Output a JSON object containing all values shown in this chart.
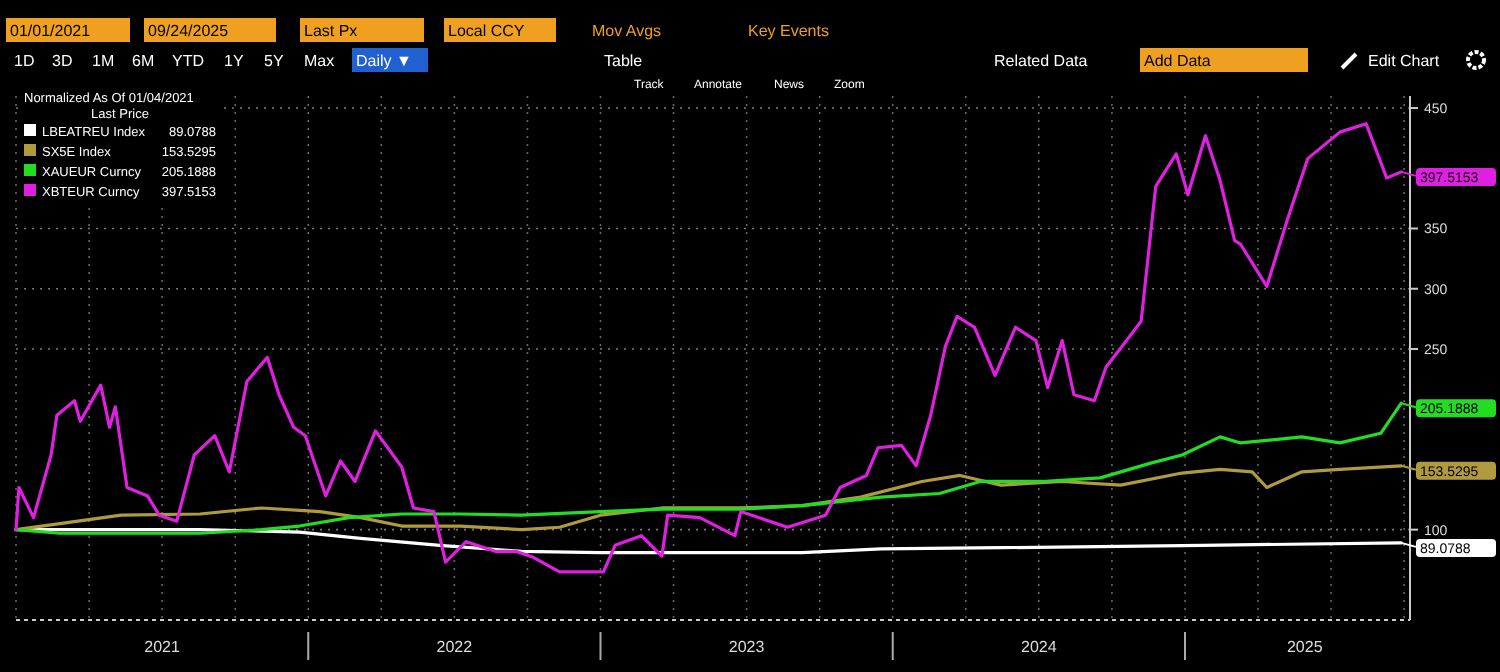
{
  "chart_data": {
    "type": "line",
    "legend_title": "Normalized As Of 01/04/2021",
    "legend": "top left",
    "grid": true,
    "line_style": "solid",
    "xlim": [
      2021,
      2025.77
    ],
    "ylim": [
      25,
      460
    ],
    "xticks": [
      {
        "value": 2021.5,
        "label": "2021"
      },
      {
        "value": 2022,
        "label": null
      },
      {
        "value": 2022.5,
        "label": "2022"
      },
      {
        "value": 2023,
        "label": null
      },
      {
        "value": 2023.5,
        "label": "2023"
      },
      {
        "value": 2024,
        "label": null
      },
      {
        "value": 2024.5,
        "label": "2024"
      },
      {
        "value": 2025,
        "label": null
      },
      {
        "value": 2025.41,
        "label": "2025"
      }
    ],
    "yticks": [
      100,
      250,
      300,
      350,
      450
    ],
    "series": [
      {
        "name": "LBEATREU Index",
        "color": "#ffffff",
        "x": [
          2021,
          2021.63,
          2021.97,
          2022.17,
          2022.45,
          2022.73,
          2023.0,
          2023.69,
          2023.96,
          2024.37,
          2025.06,
          2025.74
        ],
        "values": [
          100,
          100,
          98,
          93,
          87,
          82,
          81,
          81,
          84,
          85,
          87,
          89
        ]
      },
      {
        "name": "SX5E Index",
        "color": "#b09a40",
        "x": [
          2021,
          2021.15,
          2021.36,
          2021.63,
          2021.84,
          2022.04,
          2022.18,
          2022.32,
          2022.52,
          2022.73,
          2022.86,
          2023.0,
          2023.21,
          2023.48,
          2023.69,
          2023.89,
          2024.1,
          2024.23,
          2024.37,
          2024.58,
          2024.78,
          2024.99,
          2025.12,
          2025.23,
          2025.28,
          2025.4,
          2025.53,
          2025.74
        ],
        "values": [
          100,
          105,
          112,
          113,
          118,
          115,
          110,
          103,
          103,
          100,
          102,
          112,
          118,
          118,
          120,
          127,
          140,
          145,
          137,
          140,
          137,
          147,
          150,
          148,
          135,
          148,
          150,
          153
        ]
      },
      {
        "name": "XAUEUR Curncy",
        "color": "#22dd22",
        "x": [
          2021,
          2021.15,
          2021.36,
          2021.63,
          2021.84,
          2021.97,
          2022.14,
          2022.32,
          2022.52,
          2022.73,
          2023.0,
          2023.21,
          2023.48,
          2023.69,
          2023.96,
          2024.16,
          2024.3,
          2024.51,
          2024.71,
          2024.88,
          2024.99,
          2025.12,
          2025.19,
          2025.4,
          2025.53,
          2025.67,
          2025.74
        ],
        "values": [
          100,
          97,
          97,
          97,
          100,
          103,
          110,
          113,
          113,
          112,
          115,
          117,
          117,
          120,
          127,
          130,
          140,
          140,
          143,
          155,
          162,
          177,
          172,
          177,
          172,
          180,
          205
        ]
      },
      {
        "name": "XBTEUR Curncy",
        "color": "#e020e0",
        "x": [
          2021,
          2021.01,
          2021.06,
          2021.12,
          2021.14,
          2021.2,
          2021.22,
          2021.29,
          2021.32,
          2021.34,
          2021.38,
          2021.45,
          2021.49,
          2021.55,
          2021.61,
          2021.68,
          2021.73,
          2021.79,
          2021.86,
          2021.9,
          2021.95,
          2021.99,
          2022.06,
          2022.11,
          2022.16,
          2022.23,
          2022.32,
          2022.36,
          2022.43,
          2022.47,
          2022.54,
          2022.64,
          2022.71,
          2022.77,
          2022.86,
          2022.93,
          2023.01,
          2023.05,
          2023.14,
          2023.21,
          2023.23,
          2023.34,
          2023.46,
          2023.48,
          2023.64,
          2023.77,
          2023.82,
          2023.91,
          2023.95,
          2024.03,
          2024.08,
          2024.13,
          2024.18,
          2024.22,
          2024.28,
          2024.35,
          2024.42,
          2024.49,
          2024.53,
          2024.58,
          2024.62,
          2024.69,
          2024.73,
          2024.8,
          2024.85,
          2024.9,
          2024.97,
          2025.01,
          2025.07,
          2025.12,
          2025.17,
          2025.19,
          2025.28,
          2025.35,
          2025.42,
          2025.53,
          2025.62,
          2025.69,
          2025.74
        ],
        "values": [
          100,
          135,
          110,
          162,
          195,
          207,
          190,
          220,
          185,
          202,
          135,
          128,
          112,
          107,
          162,
          178,
          148,
          223,
          243,
          212,
          185,
          178,
          128,
          157,
          140,
          182,
          152,
          118,
          115,
          73,
          90,
          82,
          82,
          77,
          65,
          65,
          65,
          87,
          95,
          78,
          112,
          110,
          95,
          115,
          102,
          112,
          135,
          145,
          168,
          170,
          153,
          195,
          252,
          277,
          268,
          228,
          268,
          257,
          218,
          257,
          212,
          207,
          235,
          257,
          273,
          385,
          412,
          378,
          427,
          390,
          340,
          337,
          302,
          357,
          408,
          430,
          437,
          392,
          397
        ]
      }
    ],
    "annotations": [
      "89.0788",
      "153.5295",
      "205.1888",
      "397.5153",
      "Last Price",
      "01/01/2021",
      "09/24/2025",
      "Last Px",
      "Local CCY",
      "Mov Avgs",
      "Key Events",
      "1D",
      "3D",
      "1M",
      "6M",
      "YTD",
      "1Y",
      "5Y",
      "Max",
      "Daily ▼",
      "Table",
      "Related Data",
      "Add Data",
      "Edit Chart",
      "Track",
      "Annotate",
      "News",
      "Zoom"
    ]
  }
}
